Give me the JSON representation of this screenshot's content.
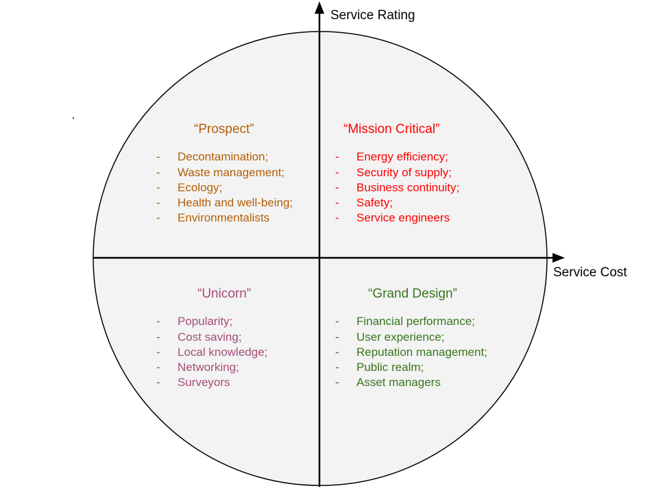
{
  "axes": {
    "vertical_label": "Service Rating",
    "horizontal_label": "Service Cost"
  },
  "quadrants": {
    "prospect": {
      "title": "“Prospect”",
      "color": "#b45f06",
      "bullet": "-",
      "items": [
        "Decontamination;",
        "Waste management;",
        "Ecology;",
        "Health and well-being;",
        "Environmentalists"
      ]
    },
    "mission_critical": {
      "title": "“Mission Critical”",
      "color": "#ff0000",
      "bullet": "-",
      "items": [
        "Energy efficiency;",
        "Security of supply;",
        "Business continuity;",
        "Safety;",
        "Service engineers"
      ]
    },
    "unicorn": {
      "title": "“Unicorn”",
      "color": "#a64d79",
      "bullet": "-",
      "items": [
        "Popularity;",
        "Cost saving;",
        "Local knowledge;",
        "Networking;",
        "Surveyors"
      ]
    },
    "grand_design": {
      "title": "“Grand Design”",
      "color": "#38761d",
      "bullet": "-",
      "items": [
        "Financial performance;",
        "User experience;",
        "Reputation management;",
        "Public realm;",
        "Asset managers"
      ]
    }
  },
  "colors": {
    "circle_fill": "#f3f3f3",
    "lines": "#000000"
  }
}
